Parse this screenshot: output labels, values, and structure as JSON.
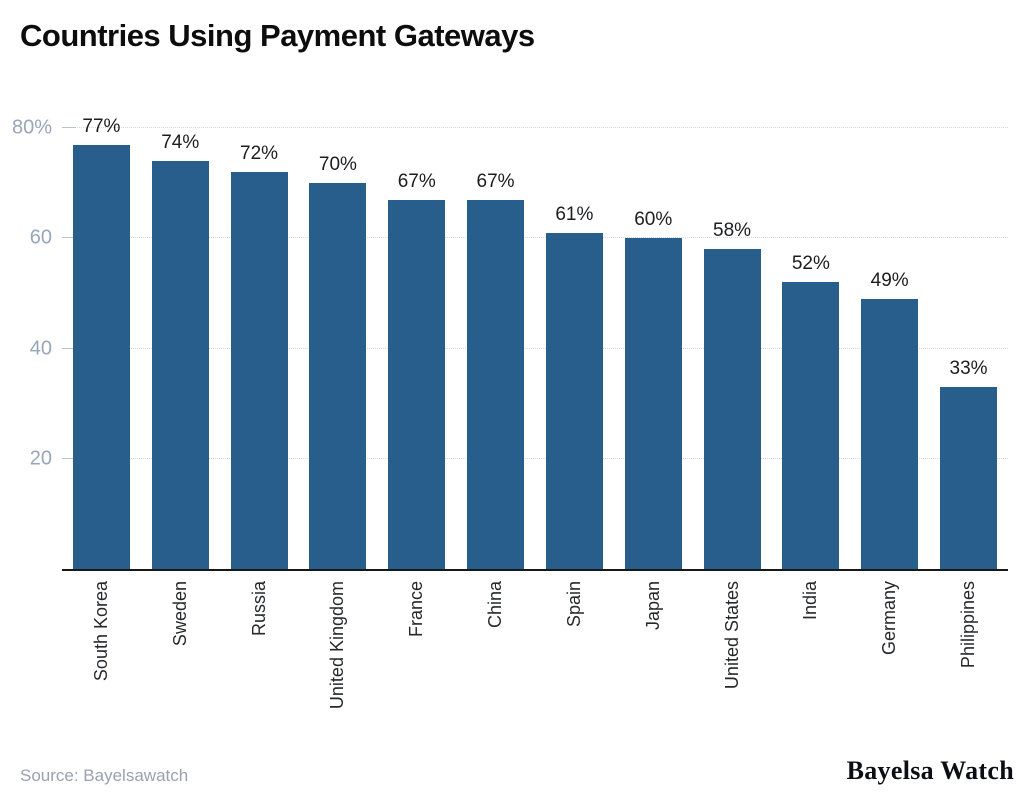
{
  "title": "Countries Using Payment Gateways",
  "footer": {
    "source": "Source: Bayelsawatch",
    "brand": "Bayelsa Watch"
  },
  "colors": {
    "bar": "#275e8b",
    "axis_label": "#98a6ba",
    "gridline": "#d8d9dd",
    "baseline": "#17181a",
    "value_label": "#1c1d1f",
    "source_text": "#99a2ae"
  },
  "chart_data": {
    "type": "bar",
    "title": "Countries Using Payment Gateways",
    "categories": [
      "South Korea",
      "Sweden",
      "Russia",
      "United Kingdom",
      "France",
      "China",
      "Spain",
      "Japan",
      "United States",
      "India",
      "Germany",
      "Philippines"
    ],
    "values": [
      77,
      74,
      72,
      70,
      67,
      67,
      61,
      60,
      58,
      52,
      49,
      33
    ],
    "value_labels": [
      "77%",
      "74%",
      "72%",
      "70%",
      "67%",
      "67%",
      "61%",
      "60%",
      "58%",
      "52%",
      "49%",
      "33%"
    ],
    "xlabel": "",
    "ylabel": "",
    "ylim": [
      0,
      80
    ],
    "yticks": [
      {
        "value": 20,
        "label": "20"
      },
      {
        "value": 40,
        "label": "40"
      },
      {
        "value": 60,
        "label": "60"
      },
      {
        "value": 80,
        "label": "80%"
      }
    ],
    "grid": true,
    "legend": false,
    "bar_color": "#275e8b",
    "x_tick_rotation": 90
  }
}
